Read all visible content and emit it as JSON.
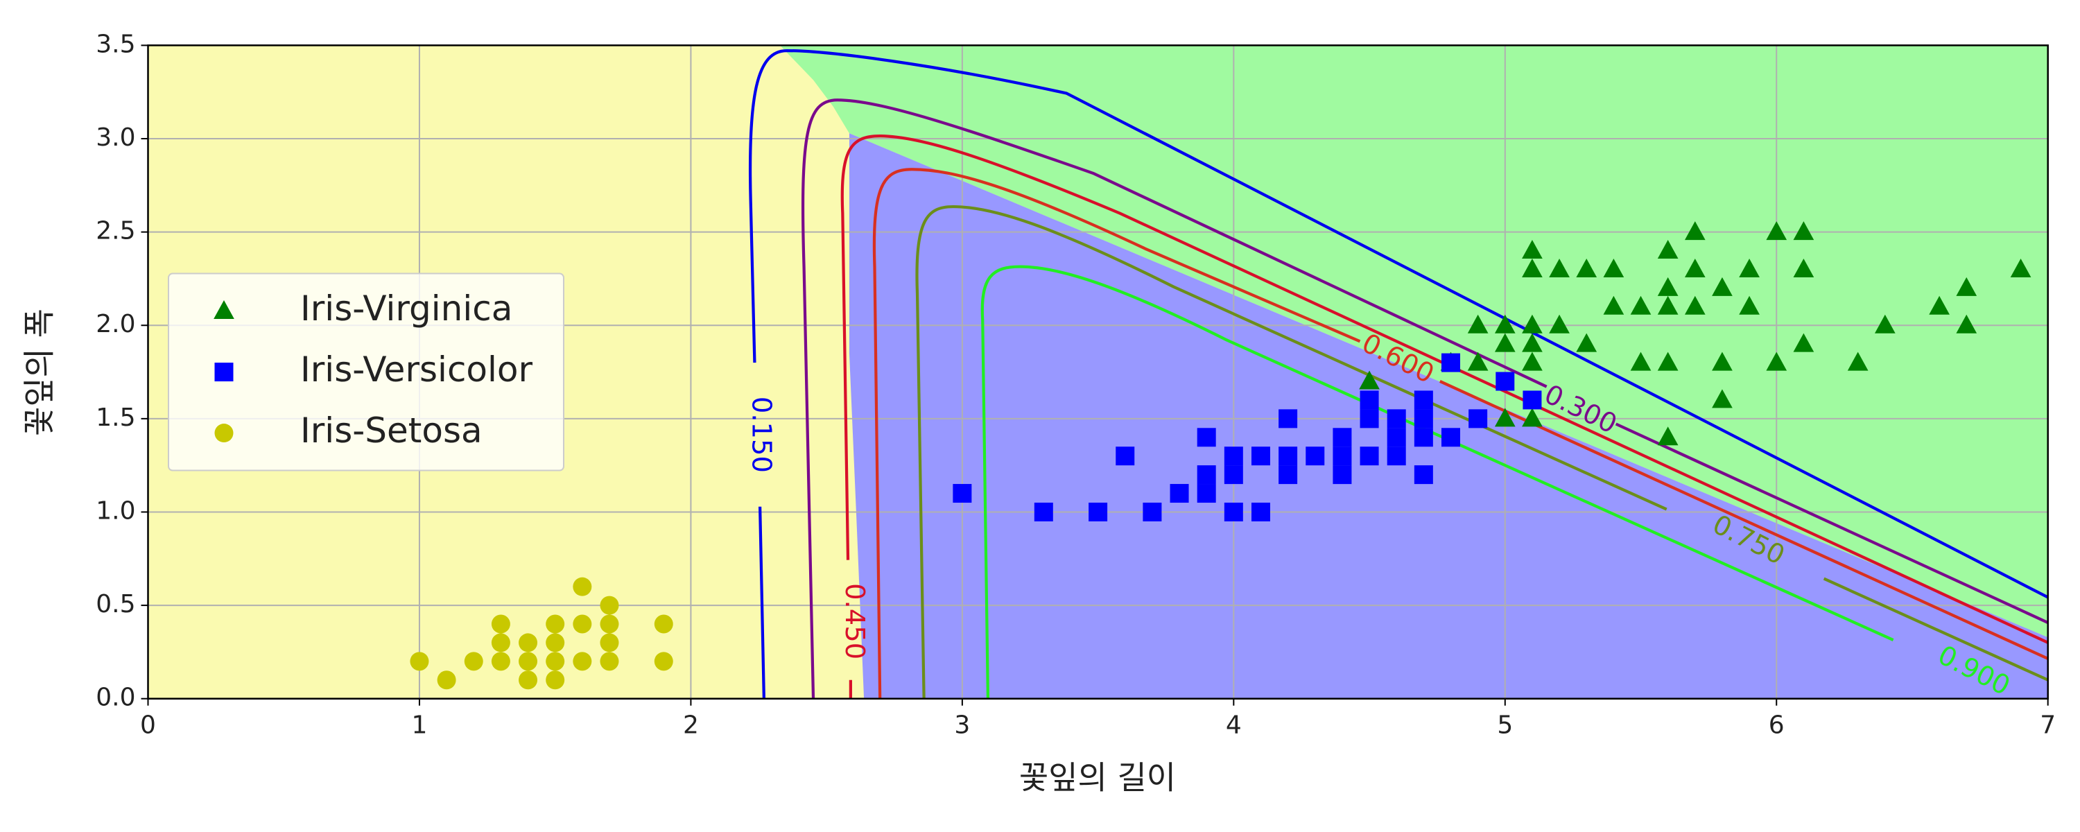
{
  "chart_data": {
    "type": "scatter",
    "xlabel": "꽃잎의 길이",
    "ylabel": "꽃잎의 폭",
    "xlim": [
      0,
      7
    ],
    "ylim": [
      0,
      3.5
    ],
    "xticks": [
      0,
      1,
      2,
      3,
      4,
      5,
      6,
      7
    ],
    "yticks": [
      {
        "value": 0,
        "label": "0.0"
      },
      {
        "value": 0.5,
        "label": "0.5"
      },
      {
        "value": 1,
        "label": "1.0"
      },
      {
        "value": 1.5,
        "label": "1.5"
      },
      {
        "value": 2,
        "label": "2.0"
      },
      {
        "value": 2.5,
        "label": "2.5"
      },
      {
        "value": 3,
        "label": "3.0"
      },
      {
        "value": 3.5,
        "label": "3.5"
      }
    ],
    "grid": true,
    "legend": "center left",
    "series": [
      {
        "name": "Iris-Virginica",
        "color": "#008000",
        "marker": "triangle",
        "x": [
          4.5,
          4.8,
          4.9,
          4.9,
          5.0,
          5.0,
          5.0,
          5.1,
          5.1,
          5.1,
          5.1,
          5.1,
          5.1,
          5.2,
          5.2,
          5.3,
          5.3,
          5.4,
          5.4,
          5.5,
          5.5,
          5.6,
          5.6,
          5.6,
          5.6,
          5.6,
          5.7,
          5.7,
          5.7,
          5.8,
          5.8,
          5.8,
          5.9,
          5.9,
          6.0,
          6.0,
          6.1,
          6.1,
          6.1,
          6.3,
          6.4,
          6.6,
          6.7,
          6.7,
          6.9
        ],
        "values": [
          1.7,
          1.8,
          1.8,
          2.0,
          1.5,
          1.9,
          2.0,
          1.5,
          1.8,
          1.9,
          2.0,
          2.3,
          2.4,
          2.0,
          2.3,
          1.9,
          2.3,
          2.1,
          2.3,
          1.8,
          2.1,
          1.4,
          1.8,
          2.1,
          2.2,
          2.4,
          2.1,
          2.3,
          2.5,
          1.6,
          1.8,
          2.2,
          2.1,
          2.3,
          1.8,
          2.5,
          1.9,
          2.3,
          2.5,
          1.8,
          2.0,
          2.1,
          2.0,
          2.2,
          2.3
        ]
      },
      {
        "name": "Iris-Versicolor",
        "color": "#0000ff",
        "marker": "square",
        "x": [
          3.0,
          3.3,
          3.5,
          3.6,
          3.7,
          3.8,
          3.9,
          3.9,
          3.9,
          4.0,
          4.0,
          4.0,
          4.1,
          4.1,
          4.2,
          4.2,
          4.2,
          4.3,
          4.4,
          4.4,
          4.4,
          4.5,
          4.5,
          4.5,
          4.6,
          4.6,
          4.6,
          4.7,
          4.7,
          4.7,
          4.7,
          4.8,
          4.8,
          4.9,
          5.0,
          5.1
        ],
        "values": [
          1.1,
          1.0,
          1.0,
          1.3,
          1.0,
          1.1,
          1.1,
          1.2,
          1.4,
          1.0,
          1.2,
          1.3,
          1.0,
          1.3,
          1.2,
          1.3,
          1.5,
          1.3,
          1.2,
          1.3,
          1.4,
          1.3,
          1.5,
          1.6,
          1.3,
          1.4,
          1.5,
          1.2,
          1.4,
          1.5,
          1.6,
          1.4,
          1.8,
          1.5,
          1.7,
          1.6
        ]
      },
      {
        "name": "Iris-Setosa",
        "color": "#c8c800",
        "marker": "circle",
        "x": [
          1.0,
          1.1,
          1.2,
          1.3,
          1.3,
          1.3,
          1.4,
          1.4,
          1.4,
          1.5,
          1.5,
          1.5,
          1.5,
          1.6,
          1.6,
          1.6,
          1.7,
          1.7,
          1.7,
          1.7,
          1.9,
          1.9
        ],
        "values": [
          0.2,
          0.1,
          0.2,
          0.2,
          0.3,
          0.4,
          0.1,
          0.2,
          0.3,
          0.1,
          0.2,
          0.3,
          0.4,
          0.2,
          0.4,
          0.6,
          0.2,
          0.3,
          0.4,
          0.5,
          0.2,
          0.4
        ]
      }
    ],
    "contours": {
      "levels": [
        {
          "value": 0.15,
          "label": "0.150"
        },
        {
          "value": 0.3,
          "label": "0.300"
        },
        {
          "value": 0.45,
          "label": "0.450"
        },
        {
          "value": 0.6,
          "label": "0.600"
        },
        {
          "value": 0.75,
          "label": "0.750"
        },
        {
          "value": 0.9,
          "label": "0.900"
        }
      ],
      "colors": [
        "#0000ee",
        "#7a0a8c",
        "#d8102a",
        "#d83020",
        "#6b8e1a",
        "#22ee22"
      ]
    }
  }
}
